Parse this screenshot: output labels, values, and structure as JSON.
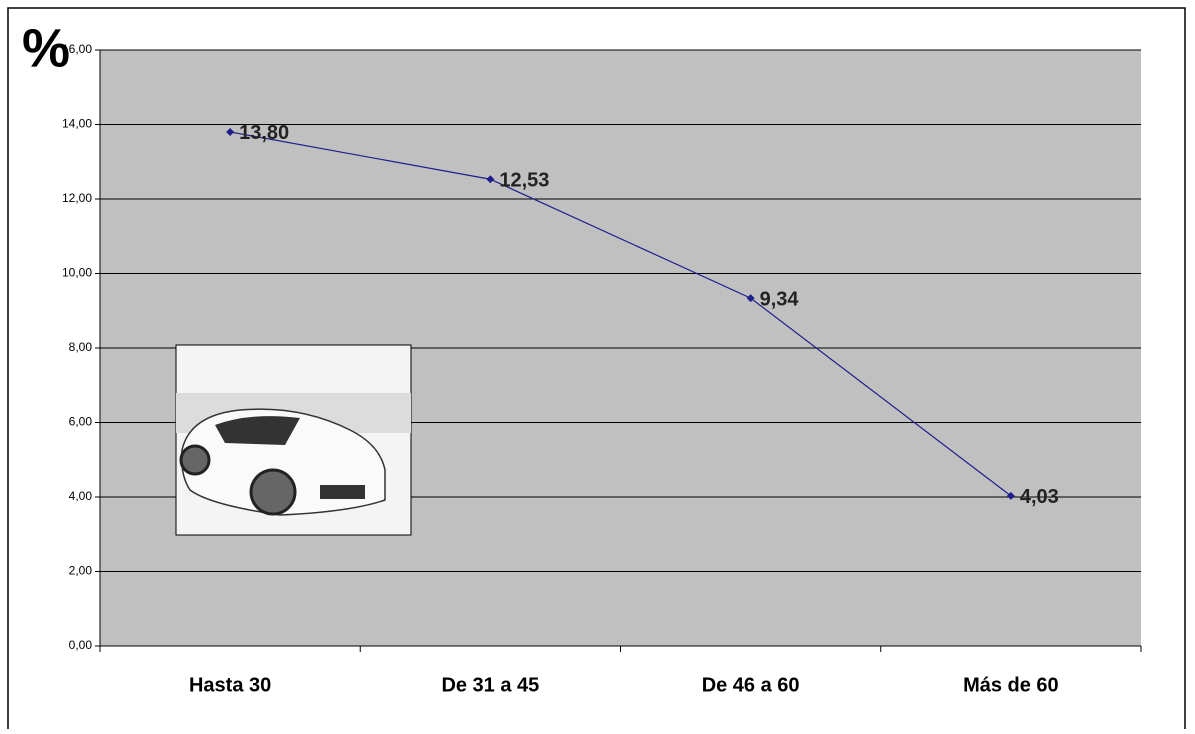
{
  "chart_data": {
    "type": "line",
    "y_label": "%",
    "categories": [
      "Hasta 30",
      "De 31 a 45",
      "De 46 a 60",
      "Más de 60"
    ],
    "series": [
      {
        "color": "#1f1f8c",
        "values": [
          13.8,
          12.53,
          9.34,
          4.03
        ],
        "value_labels": [
          "13,80",
          "12,53",
          "9,34",
          "4,03"
        ]
      }
    ],
    "ylim": [
      0,
      16
    ],
    "yticks": [
      {
        "value": 0,
        "label": "0,00"
      },
      {
        "value": 2,
        "label": "2,00"
      },
      {
        "value": 4,
        "label": "4,00"
      },
      {
        "value": 6,
        "label": "6,00"
      },
      {
        "value": 8,
        "label": "8,00"
      },
      {
        "value": 10,
        "label": "10,00"
      },
      {
        "value": 12,
        "label": "12,00"
      },
      {
        "value": 14,
        "label": "14,00"
      },
      {
        "value": 16,
        "label": "16,00"
      }
    ],
    "grid": true
  }
}
